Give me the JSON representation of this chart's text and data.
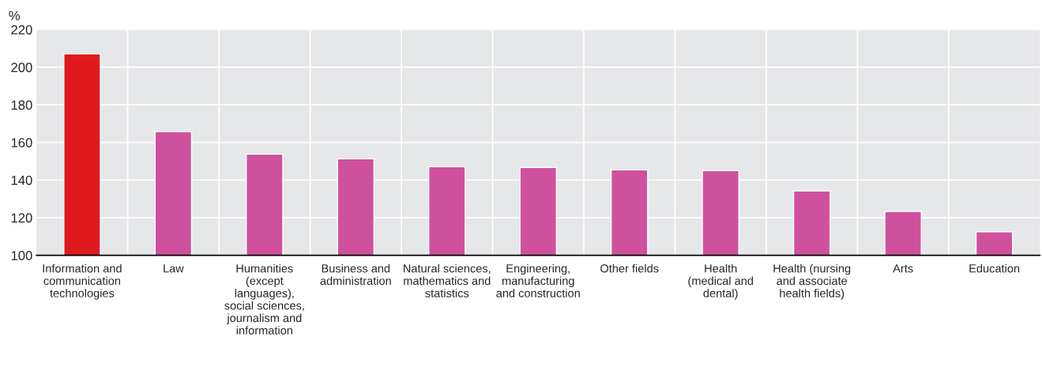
{
  "chart_data": {
    "type": "bar",
    "ylabel": "%",
    "categories": [
      "Information and\ncommunication\ntechnologies",
      "Law",
      "Humanities\n(except\nlanguages),\nsocial sciences,\njournalism and\ninformation",
      "Business and\nadministration",
      "Natural sciences,\nmathematics and\nstatistics",
      "Engineering,\nmanufacturing\nand construction",
      "Other fields",
      "Health\n(medical and\ndental)",
      "Health (nursing\nand associate\nhealth fields)",
      "Arts",
      "Education"
    ],
    "values": [
      207.1,
      165.8,
      153.8,
      151.3,
      147.1,
      146.7,
      145.4,
      145.0,
      134.2,
      123.3,
      112.5
    ],
    "colors": [
      "#e0191f",
      "#cf519e",
      "#cf519e",
      "#cf519e",
      "#cf519e",
      "#cf519e",
      "#cf519e",
      "#cf519e",
      "#cf519e",
      "#cf519e",
      "#cf519e"
    ],
    "ylim": [
      100,
      220
    ],
    "yticks": [
      100,
      120,
      140,
      160,
      180,
      200,
      220
    ],
    "grid": true
  }
}
